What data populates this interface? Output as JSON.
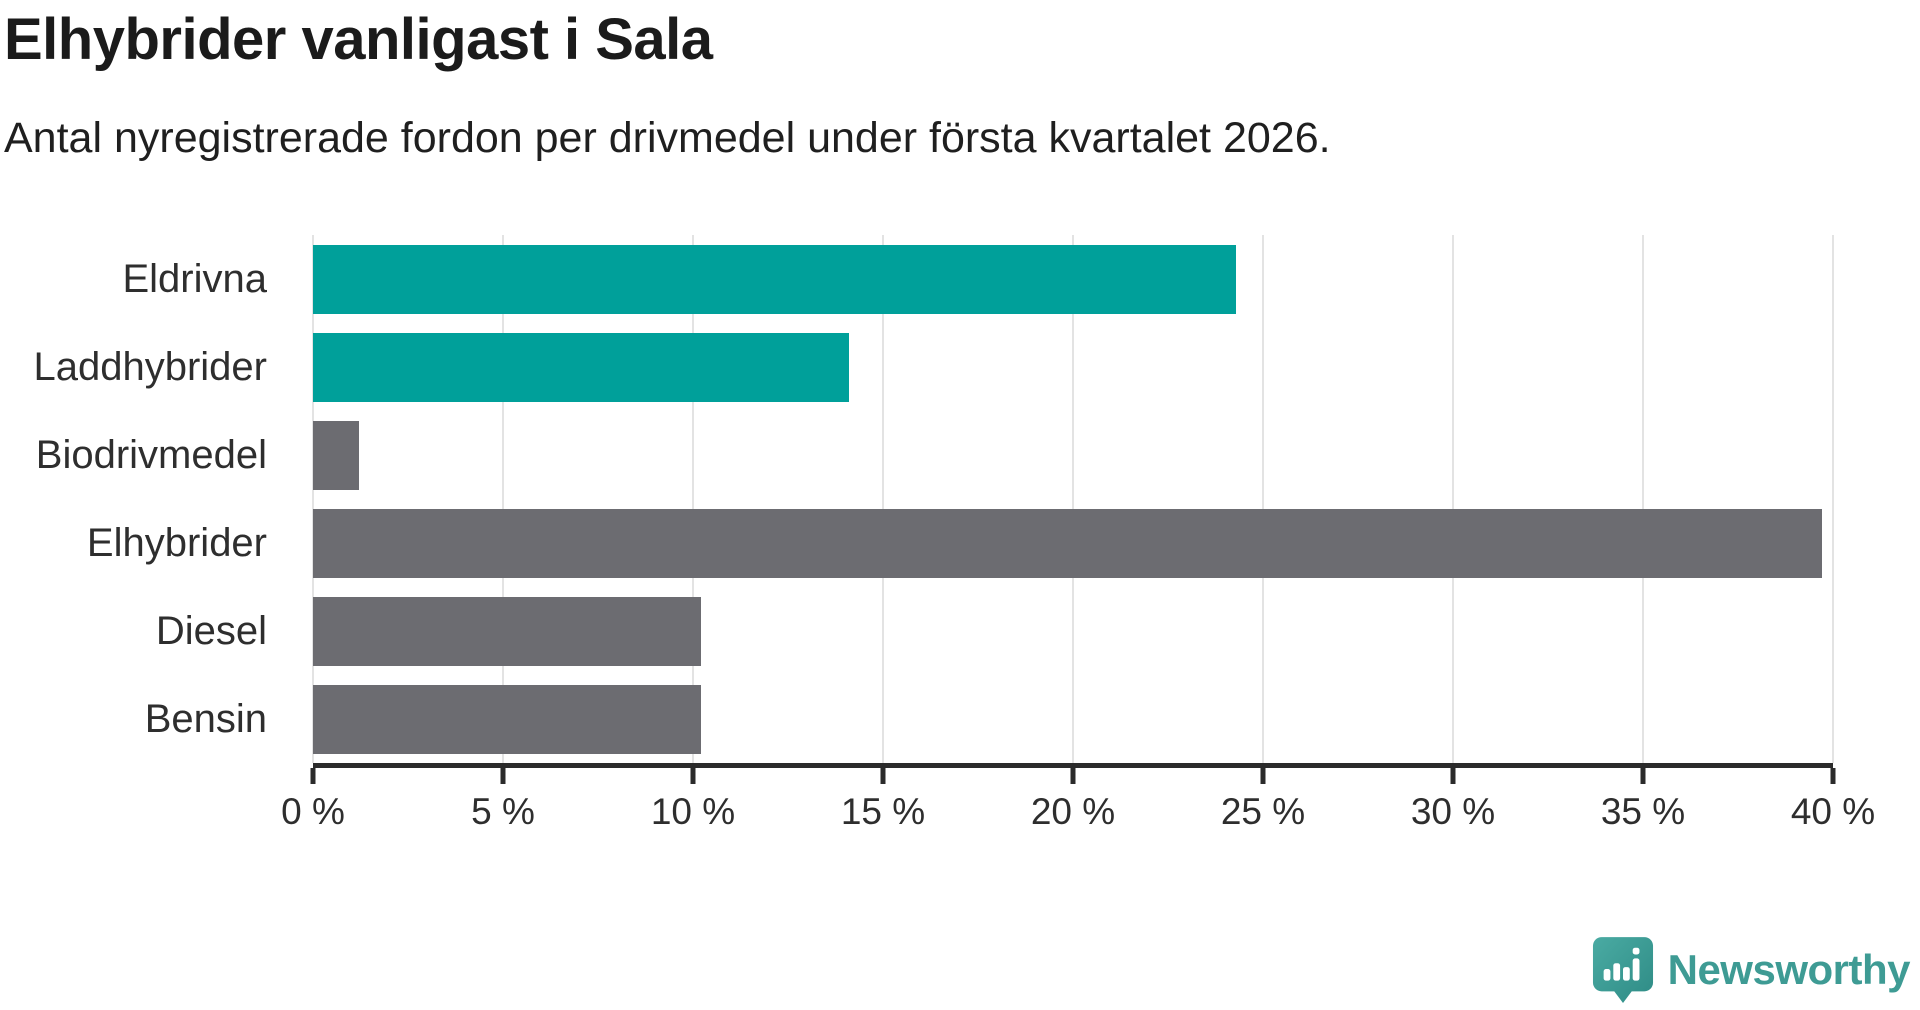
{
  "header": {
    "title": "Elhybrider vanligast i Sala",
    "subtitle": "Antal nyregistrerade fordon per drivmedel under första kvartalet 2026."
  },
  "chart_data": {
    "type": "bar",
    "orientation": "horizontal",
    "title": "Elhybrider vanligast i Sala",
    "subtitle": "Antal nyregistrerade fordon per drivmedel under första kvartalet 2026.",
    "categories": [
      "Eldrivna",
      "Laddhybrider",
      "Biodrivmedel",
      "Elhybrider",
      "Diesel",
      "Bensin"
    ],
    "values": [
      24.3,
      14.1,
      1.2,
      39.7,
      10.2,
      10.2
    ],
    "unit": "%",
    "bar_colors": [
      "#00A09A",
      "#00A09A",
      "#6C6C71",
      "#6C6C71",
      "#6C6C71",
      "#6C6C71"
    ],
    "xlim": [
      0,
      40
    ],
    "x_tick_values": [
      0,
      5,
      10,
      15,
      20,
      25,
      30,
      35,
      40
    ],
    "x_tick_labels": [
      "0 %",
      "5 %",
      "10 %",
      "15 %",
      "20 %",
      "25 %",
      "30 %",
      "35 %",
      "40 %"
    ],
    "grid": "vertical",
    "legend": "none"
  },
  "colors": {
    "accent_teal": "#00A09A",
    "neutral_gray": "#6C6C71",
    "axis": "#2B2B2B",
    "gridline": "#E3E3E3",
    "text": "#1B1B1B",
    "brand_teal": "#3E9B94"
  },
  "branding": {
    "logo_text": "Newsworthy",
    "logo_icon": "bar-chart-speech-bubble-icon"
  }
}
